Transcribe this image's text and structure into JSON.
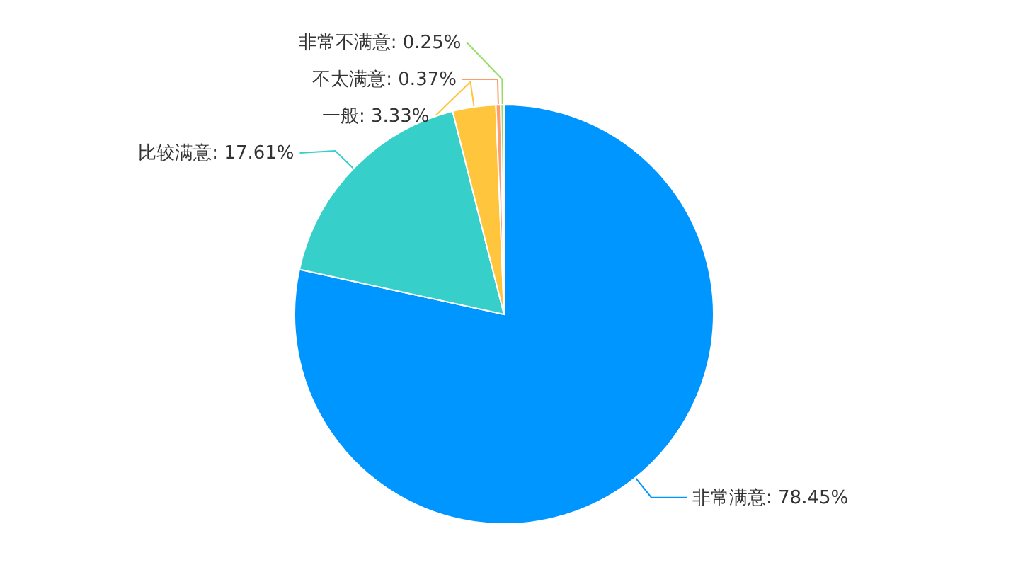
{
  "chart_data": {
    "type": "pie",
    "categories": [
      "非常满意",
      "比较满意",
      "一般",
      "不太满意",
      "非常不满意"
    ],
    "values": [
      78.45,
      17.61,
      3.33,
      0.37,
      0.25
    ],
    "value_labels": [
      "78.45%",
      "17.61%",
      "3.33%",
      "0.37%",
      "0.25%"
    ],
    "colors": [
      "#0096ff",
      "#36cfc9",
      "#ffc53d",
      "#ff9c6e",
      "#95de64"
    ]
  }
}
